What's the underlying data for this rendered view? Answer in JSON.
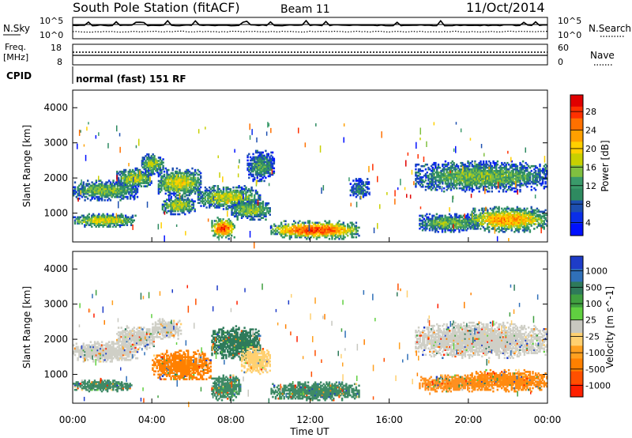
{
  "header": {
    "title": "South Pole Station (fitACF)",
    "beam": "Beam 11",
    "date": "11/Oct/2014"
  },
  "panels": {
    "nsky": {
      "left_label": "N.Sky",
      "left_ticks": [
        "10^5",
        "10^0"
      ],
      "right_label": "N.Search",
      "right_ticks": [
        "10^5",
        "10^0"
      ]
    },
    "freq": {
      "left_label_line1": "Freq.",
      "left_label_line2": "[MHz]",
      "left_ticks": [
        "18",
        "8"
      ],
      "right_label": "Nave",
      "right_ticks": [
        "60",
        "0"
      ]
    },
    "cpid": {
      "label": "CPID",
      "text": "normal (fast) 151 RF"
    }
  },
  "chart_data": [
    {
      "type": "heatmap",
      "title": "",
      "quantity": "Power",
      "xlabel": "Time UT",
      "ylabel": "Slant Range [km]",
      "xlim_hours": [
        0,
        24
      ],
      "x_ticks": [
        "00:00",
        "04:00",
        "08:00",
        "12:00",
        "16:00",
        "20:00",
        "00:00"
      ],
      "ylim": [
        180,
        4500
      ],
      "y_ticks": [
        1000,
        2000,
        3000,
        4000
      ],
      "colorbar": {
        "label": "Power [dB]",
        "ticks": [
          "28",
          "24",
          "20",
          "16",
          "12",
          "8",
          "4"
        ],
        "colors": [
          "#e00000",
          "#ff3000",
          "#ff7000",
          "#ffa000",
          "#ffd000",
          "#c8d000",
          "#80c040",
          "#3a9a6a",
          "#2e8a60",
          "#1d4fb0",
          "#0a2ee8",
          "#0010ff"
        ]
      },
      "bands": [
        {
          "t": [
            0.0,
            3.3
          ],
          "r": [
            1350,
            1950
          ],
          "level": 0.45
        },
        {
          "t": [
            2.2,
            4.0
          ],
          "r": [
            1700,
            2300
          ],
          "level": 0.55
        },
        {
          "t": [
            3.5,
            4.6
          ],
          "r": [
            2100,
            2700
          ],
          "level": 0.5
        },
        {
          "t": [
            4.3,
            6.5
          ],
          "r": [
            1450,
            2300
          ],
          "level": 0.6
        },
        {
          "t": [
            4.5,
            6.2
          ],
          "r": [
            950,
            1500
          ],
          "level": 0.55
        },
        {
          "t": [
            6.3,
            9.5
          ],
          "r": [
            1100,
            1800
          ],
          "level": 0.55
        },
        {
          "t": [
            7.0,
            8.2
          ],
          "r": [
            250,
            900
          ],
          "level": 0.9
        },
        {
          "t": [
            8.0,
            10.0
          ],
          "r": [
            800,
            1400
          ],
          "level": 0.5
        },
        {
          "t": [
            10.0,
            14.5
          ],
          "r": [
            250,
            800
          ],
          "level": 0.9
        },
        {
          "t": [
            0.0,
            3.2
          ],
          "r": [
            600,
            1000
          ],
          "level": 0.6
        },
        {
          "t": [
            8.8,
            10.2
          ],
          "r": [
            1900,
            2800
          ],
          "level": 0.35
        },
        {
          "t": [
            14.0,
            15.0
          ],
          "r": [
            1400,
            2000
          ],
          "level": 0.3
        },
        {
          "t": [
            17.3,
            24.0
          ],
          "r": [
            1600,
            2500
          ],
          "level": 0.45
        },
        {
          "t": [
            17.5,
            20.5
          ],
          "r": [
            450,
            1000
          ],
          "level": 0.45
        },
        {
          "t": [
            20.0,
            24.0
          ],
          "r": [
            450,
            1200
          ],
          "level": 0.75
        }
      ]
    },
    {
      "type": "heatmap",
      "title": "",
      "quantity": "Velocity",
      "xlabel": "Time UT",
      "ylabel": "Slant Range [km]",
      "xlim_hours": [
        0,
        24
      ],
      "x_ticks": [
        "00:00",
        "04:00",
        "08:00",
        "12:00",
        "16:00",
        "20:00",
        "00:00"
      ],
      "ylim": [
        180,
        4500
      ],
      "y_ticks": [
        1000,
        2000,
        3000,
        4000
      ],
      "colorbar": {
        "label": "Velocity [m s^-1]",
        "ticks": [
          "1000",
          "500",
          "100",
          "25",
          "-25",
          "-100",
          "-500",
          "-1000"
        ],
        "colors": [
          "#1e3cc8",
          "#3070b8",
          "#2e7a5a",
          "#40a040",
          "#60d040",
          "#c8c8c0",
          "#ffd070",
          "#ffa020",
          "#ff8000",
          "#ff5000",
          "#ff2000"
        ]
      },
      "bands": [
        {
          "t": [
            0.0,
            3.3
          ],
          "r": [
            1350,
            1950
          ],
          "color": "#cfcfc6"
        },
        {
          "t": [
            2.2,
            4.2
          ],
          "r": [
            1700,
            2400
          ],
          "color": "#cfcfc6"
        },
        {
          "t": [
            4.0,
            5.5
          ],
          "r": [
            2000,
            2600
          ],
          "color": "#cfcfc6"
        },
        {
          "t": [
            4.0,
            7.0
          ],
          "r": [
            800,
            1700
          ],
          "color": "#ff8000"
        },
        {
          "t": [
            0.0,
            3.0
          ],
          "r": [
            500,
            850
          ],
          "color": "#3f8a66"
        },
        {
          "t": [
            7.0,
            9.5
          ],
          "r": [
            1400,
            2400
          ],
          "color": "#2e7a5a"
        },
        {
          "t": [
            7.0,
            8.5
          ],
          "r": [
            250,
            1000
          ],
          "color": "#3f8a66"
        },
        {
          "t": [
            8.5,
            10.0
          ],
          "r": [
            1000,
            1800
          ],
          "color": "#ffd070"
        },
        {
          "t": [
            10.0,
            14.5
          ],
          "r": [
            250,
            800
          ],
          "color": "#3f8a66"
        },
        {
          "t": [
            17.3,
            24.0
          ],
          "r": [
            1450,
            2500
          ],
          "color": "#cfcfc6"
        },
        {
          "t": [
            17.5,
            21.0
          ],
          "r": [
            500,
            1000
          ],
          "color": "#ff9020"
        },
        {
          "t": [
            20.0,
            24.0
          ],
          "r": [
            500,
            1150
          ],
          "color": "#ff8a10"
        }
      ]
    }
  ]
}
